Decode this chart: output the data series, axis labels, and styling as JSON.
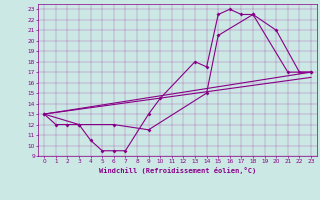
{
  "xlabel": "Windchill (Refroidissement éolien,°C)",
  "bg_color": "#cce8e4",
  "line_color": "#880088",
  "xlim": [
    -0.5,
    23.5
  ],
  "ylim": [
    9,
    23.5
  ],
  "xticks": [
    0,
    1,
    2,
    3,
    4,
    5,
    6,
    7,
    8,
    9,
    10,
    11,
    12,
    13,
    14,
    15,
    16,
    17,
    18,
    19,
    20,
    21,
    22,
    23
  ],
  "yticks": [
    9,
    10,
    11,
    12,
    13,
    14,
    15,
    16,
    17,
    18,
    19,
    20,
    21,
    22,
    23
  ],
  "curve1": {
    "x": [
      0,
      1,
      2,
      3,
      4,
      5,
      6,
      7,
      9,
      10,
      13,
      14,
      15,
      16,
      17,
      18,
      20,
      22,
      23
    ],
    "y": [
      13,
      12,
      12,
      12,
      10.5,
      9.5,
      9.5,
      9.5,
      13,
      14.5,
      18,
      17.5,
      22.5,
      23,
      22.5,
      22.5,
      21,
      17,
      17
    ]
  },
  "curve2": {
    "x": [
      0,
      3,
      6,
      9,
      14,
      15,
      18,
      21,
      23
    ],
    "y": [
      13,
      12,
      12,
      11.5,
      15,
      20.5,
      22.5,
      17,
      17
    ]
  },
  "diag1": {
    "x": [
      0,
      23
    ],
    "y": [
      13,
      16.5
    ]
  },
  "diag2": {
    "x": [
      0,
      23
    ],
    "y": [
      13,
      17.0
    ]
  }
}
